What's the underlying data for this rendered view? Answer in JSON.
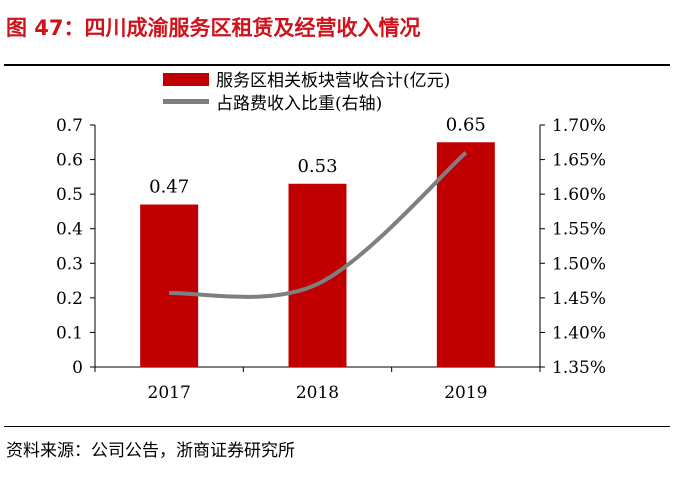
{
  "title": "图 47：四川成渝服务区租赁及经营收入情况",
  "source": "资料来源：公司公告，浙商证券研究所",
  "chart_data": {
    "type": "bar",
    "categories": [
      "2017",
      "2018",
      "2019"
    ],
    "series": [
      {
        "name": "服务区相关板块营收合计(亿元)",
        "type": "bar",
        "axis": "left",
        "color": "#c00000",
        "values": [
          0.47,
          0.53,
          0.65
        ],
        "data_labels": [
          "0.47",
          "0.53",
          "0.65"
        ]
      },
      {
        "name": "占路费收入比重(右轴)",
        "type": "line",
        "axis": "right",
        "color": "#7f7f7f",
        "values": [
          1.457,
          1.47,
          1.66
        ],
        "smooth": true
      }
    ],
    "y_left": {
      "lim": [
        0,
        0.7
      ],
      "ticks": [
        "0",
        "0.1",
        "0.2",
        "0.3",
        "0.4",
        "0.5",
        "0.6",
        "0.7"
      ]
    },
    "y_right": {
      "lim": [
        1.35,
        1.7
      ],
      "ticks": [
        "1.35%",
        "1.40%",
        "1.45%",
        "1.50%",
        "1.55%",
        "1.60%",
        "1.65%",
        "1.70%"
      ]
    },
    "legend": "top-center",
    "grid": false
  }
}
